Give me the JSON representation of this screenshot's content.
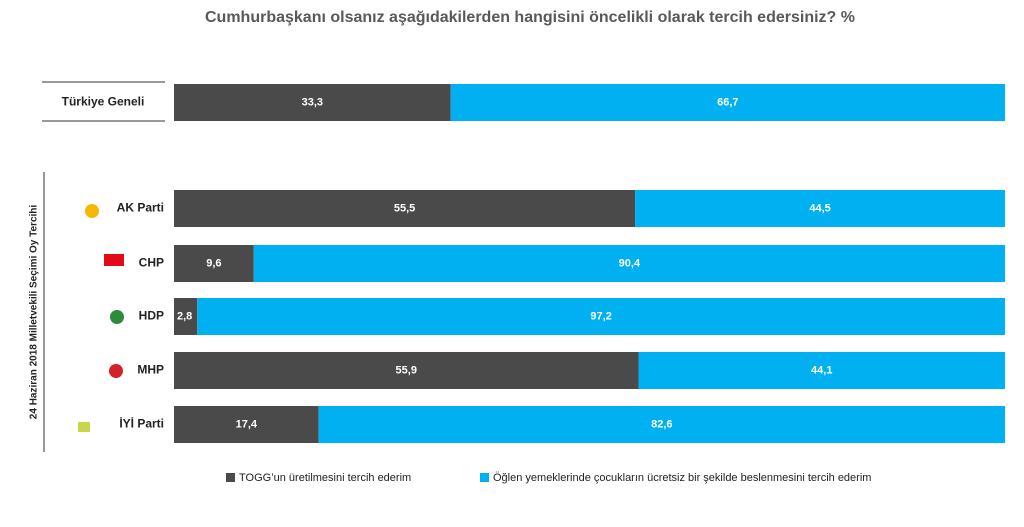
{
  "chart_data": {
    "type": "stacked-bar-horizontal",
    "title": "Cumhurbaşkanı olsanız aşağıdakilerden hangisini öncelikli olarak tercih edersiniz? %",
    "group_label": "24 Haziran 2018 Milletvekili Seçimi Oy Tercihi",
    "categories": [
      "Türkiye Geneli",
      "AK Parti",
      "CHP",
      "HDP",
      "MHP",
      "İYİ Parti"
    ],
    "xlim": [
      0,
      100
    ],
    "series": [
      {
        "name": "TOGG’un üretilmesini tercih ederim",
        "color": "#4a4a4a",
        "values": [
          33.3,
          55.5,
          9.6,
          2.8,
          55.9,
          17.4
        ],
        "value_labels": [
          "33,3",
          "55,5",
          "9,6",
          "2,8",
          "55,9",
          "17,4"
        ]
      },
      {
        "name": "Öğlen yemeklerinde çocukların ücretsiz bir şekilde beslenmesini tercih ederim",
        "color": "#00b0f0",
        "values": [
          66.7,
          44.5,
          90.4,
          97.2,
          44.1,
          82.6
        ],
        "value_labels": [
          "66,7",
          "44,5",
          "90,4",
          "97,2",
          "44,1",
          "82,6"
        ]
      }
    ],
    "legend": "bottom"
  }
}
